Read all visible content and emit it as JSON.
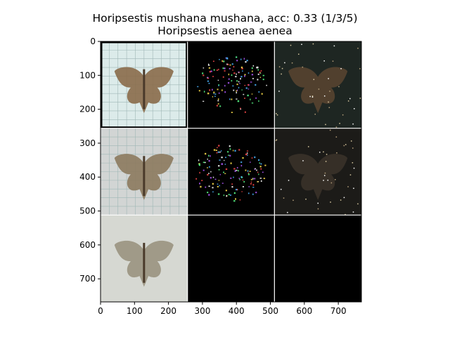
{
  "title_lines": [
    "Horipsestis mushana mushana, acc: 0.33 (1/3/5)",
    "Horipsestis aenea aenea"
  ],
  "chart_data": {
    "type": "image-grid",
    "title": "Horipsestis mushana mushana, acc: 0.33 (1/3/5)\nHoripsestis aenea aenea",
    "xlim": [
      0,
      768
    ],
    "ylim": [
      768,
      0
    ],
    "x_ticks": [
      0,
      100,
      200,
      300,
      400,
      500,
      600,
      700
    ],
    "y_ticks": [
      0,
      100,
      200,
      300,
      400,
      500,
      600,
      700
    ],
    "grid": {
      "rows": 3,
      "cols": 3,
      "tile_size": 256
    },
    "tiles": [
      {
        "row": 0,
        "col": 0,
        "content": "moth-photo",
        "background": "#dcebea",
        "gridpaper": true,
        "moth_color": "#8a6b4a",
        "border": "#000000"
      },
      {
        "row": 0,
        "col": 1,
        "content": "saliency-sparse",
        "background": "#000000"
      },
      {
        "row": 0,
        "col": 2,
        "content": "masked-moth",
        "background": "#1e2622",
        "moth_color": "#5a4530"
      },
      {
        "row": 1,
        "col": 0,
        "content": "moth-photo",
        "background": "#d2d5d4",
        "gridpaper": true,
        "moth_color": "#8c7a5e"
      },
      {
        "row": 1,
        "col": 1,
        "content": "saliency-sparse",
        "background": "#000000"
      },
      {
        "row": 1,
        "col": 2,
        "content": "masked-moth",
        "background": "#1c1b18",
        "moth_color": "#3b332a"
      },
      {
        "row": 2,
        "col": 0,
        "content": "moth-photo",
        "background": "#d6d8d2",
        "gridpaper": false,
        "moth_color": "#9a9380"
      },
      {
        "row": 2,
        "col": 1,
        "content": "blank",
        "background": "#000000"
      },
      {
        "row": 2,
        "col": 2,
        "content": "blank",
        "background": "#000000"
      }
    ]
  }
}
